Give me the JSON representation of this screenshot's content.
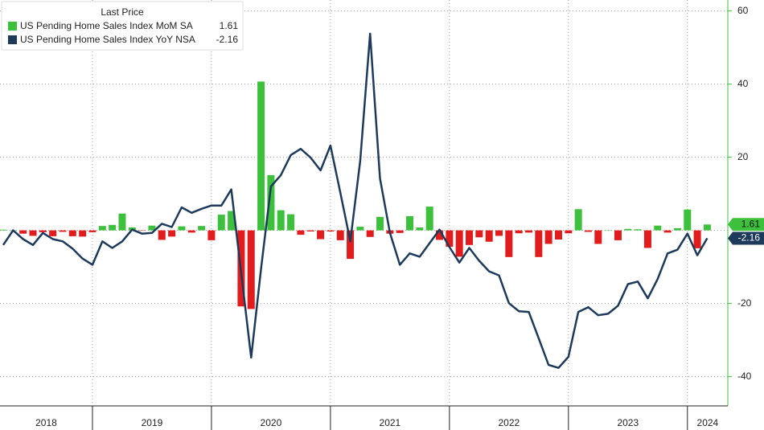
{
  "chart_data": {
    "type": "bar_line",
    "legend_title": "Last Price",
    "categories": [
      "2018",
      null,
      null,
      null,
      null,
      null,
      null,
      null,
      null,
      "2019",
      null,
      null,
      null,
      null,
      null,
      null,
      null,
      null,
      null,
      null,
      null,
      "2020",
      null,
      null,
      null,
      null,
      null,
      null,
      null,
      null,
      null,
      null,
      null,
      "2021",
      null,
      null,
      null,
      null,
      null,
      null,
      null,
      null,
      null,
      null,
      null,
      "2022",
      null,
      null,
      null,
      null,
      null,
      null,
      null,
      null,
      null,
      null,
      null,
      "2023",
      null,
      null,
      null,
      null,
      null,
      null,
      null,
      null,
      null,
      null,
      null,
      "2024",
      null,
      null
    ],
    "series": [
      {
        "name": "US Pending Home Sales Index MoM SA",
        "type": "bar",
        "color": "#3dc13d",
        "negative_color": "#e21c1c",
        "values": [
          0.2,
          0,
          -0.9,
          -1.5,
          -0.5,
          -1.6,
          -0.4,
          -1.6,
          -1.7,
          -0.5,
          1.2,
          1.5,
          4.6,
          0.8,
          -0.1,
          1.3,
          -2.6,
          -1.7,
          1.1,
          -0.6,
          1.2,
          -2.7,
          4.3,
          5.3,
          -20.8,
          -21.5,
          40.7,
          15.1,
          5.5,
          4.4,
          -1.2,
          -0.3,
          -2.4,
          -0.3,
          -2.7,
          -7.8,
          1,
          -1.8,
          3.7,
          -0.9,
          -0.7,
          3.9,
          0.8,
          6.5,
          -2.6,
          -4.5,
          -7.2,
          -4,
          -1.9,
          -3.1,
          -1.5,
          -7.3,
          -0.8,
          -0.6,
          -7.3,
          -3.7,
          -2.5,
          -0.8,
          5.8,
          -0.4,
          -3.7,
          0,
          -2.7,
          0.4,
          0.3,
          -4.8,
          1.3,
          -0.6,
          0.6,
          5.7,
          -4.9,
          1.61
        ]
      },
      {
        "name": "US Pending Home Sales Index YoY NSA",
        "type": "line",
        "color": "#1d3a5a",
        "values": [
          -4,
          0,
          -2.4,
          -4,
          -0.7,
          -2.4,
          -3,
          -5,
          -7.7,
          -9.4,
          -3,
          -4.8,
          -3,
          0.2,
          -0.9,
          -0.7,
          1.8,
          0.9,
          6.3,
          4.8,
          5.9,
          6.8,
          6.8,
          11.2,
          -11.6,
          -34.8,
          -10.5,
          12,
          15.1,
          20.6,
          22.3,
          19.9,
          16.4,
          23.2,
          10.3,
          -3,
          19,
          53.8,
          14.2,
          -0.7,
          -9.4,
          -6.3,
          -7.2,
          -3.5,
          0.2,
          -4.6,
          -8.8,
          -4.8,
          -8.3,
          -11.2,
          -12.3,
          -19.9,
          -22.1,
          -22.3,
          -29.5,
          -36.8,
          -37.6,
          -34.6,
          -22.3,
          -21,
          -23.2,
          -22.8,
          -20.6,
          -14.7,
          -14,
          -18.6,
          -13.3,
          -6.3,
          -5.3,
          -0.9,
          -6.8,
          -2.16
        ]
      }
    ],
    "ylim": [
      -48,
      63
    ],
    "yticks": [
      -40,
      -20,
      20,
      40,
      60
    ],
    "grid": true,
    "legend_position": "top-left"
  }
}
